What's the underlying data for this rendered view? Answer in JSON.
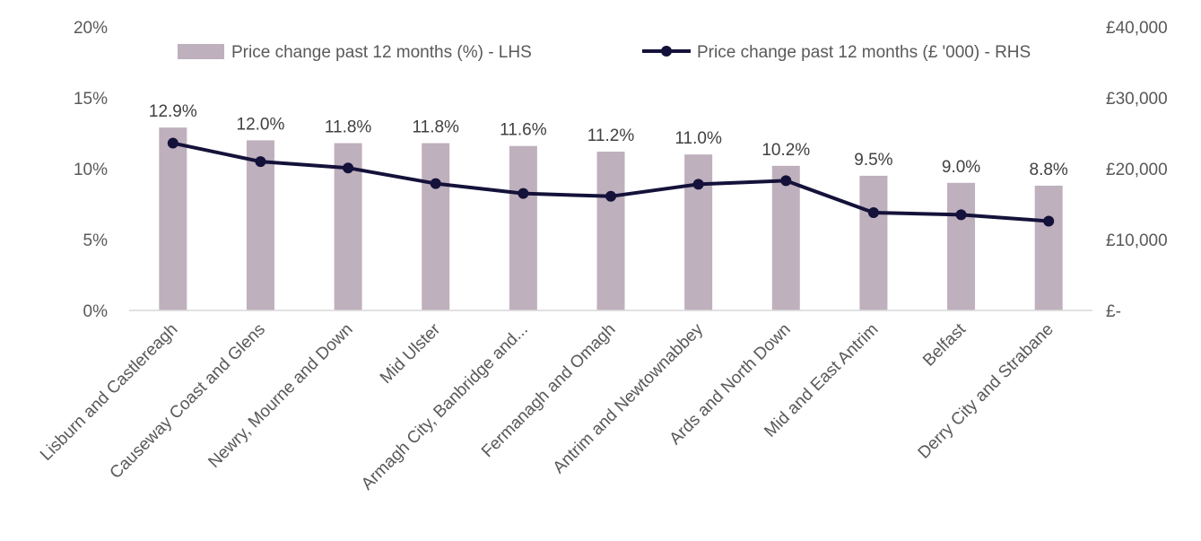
{
  "chart_data": {
    "type": "bar",
    "categories": [
      "Lisburn and Castlereagh",
      "Causeway Coast and Glens",
      "Newry, Mourne and Down",
      "Mid Ulster",
      "Armagh City, Banbridge and...",
      "Fermanagh and Omagh",
      "Antrim and Newtownabbey",
      "Ards and North Down",
      "Mid and East Antrim",
      "Belfast",
      "Derry City and Strabane"
    ],
    "series": [
      {
        "name": "Price change past 12 months (%) - LHS",
        "type": "bar",
        "axis": "left",
        "values": [
          12.9,
          12.0,
          11.8,
          11.8,
          11.6,
          11.2,
          11.0,
          10.2,
          9.5,
          9.0,
          8.8
        ],
        "data_labels": [
          "12.9%",
          "12.0%",
          "11.8%",
          "11.8%",
          "11.6%",
          "11.2%",
          "11.0%",
          "10.2%",
          "9.5%",
          "9.0%",
          "8.8%"
        ]
      },
      {
        "name": "Price change past 12 months (£ '000) - RHS",
        "type": "line",
        "axis": "right",
        "values": [
          23600,
          21000,
          20100,
          17900,
          16500,
          16100,
          17800,
          18300,
          13800,
          13500,
          12600
        ]
      }
    ],
    "y_left": {
      "lim": [
        0,
        20
      ],
      "ticks": [
        0,
        5,
        10,
        15,
        20
      ],
      "tick_labels": [
        "0%",
        "5%",
        "10%",
        "15%",
        "20%"
      ]
    },
    "y_right": {
      "lim": [
        0,
        40000
      ],
      "ticks": [
        0,
        10000,
        20000,
        30000,
        40000
      ],
      "tick_labels": [
        "£-",
        "£10,000",
        "£20,000",
        "£30,000",
        "£40,000"
      ]
    },
    "legend_position": "top",
    "grid": false,
    "colors": {
      "bar": "#bfb0bd",
      "line": "#14123a",
      "axis": "#d9d9d9",
      "text": "#595959",
      "label": "#404040"
    }
  }
}
